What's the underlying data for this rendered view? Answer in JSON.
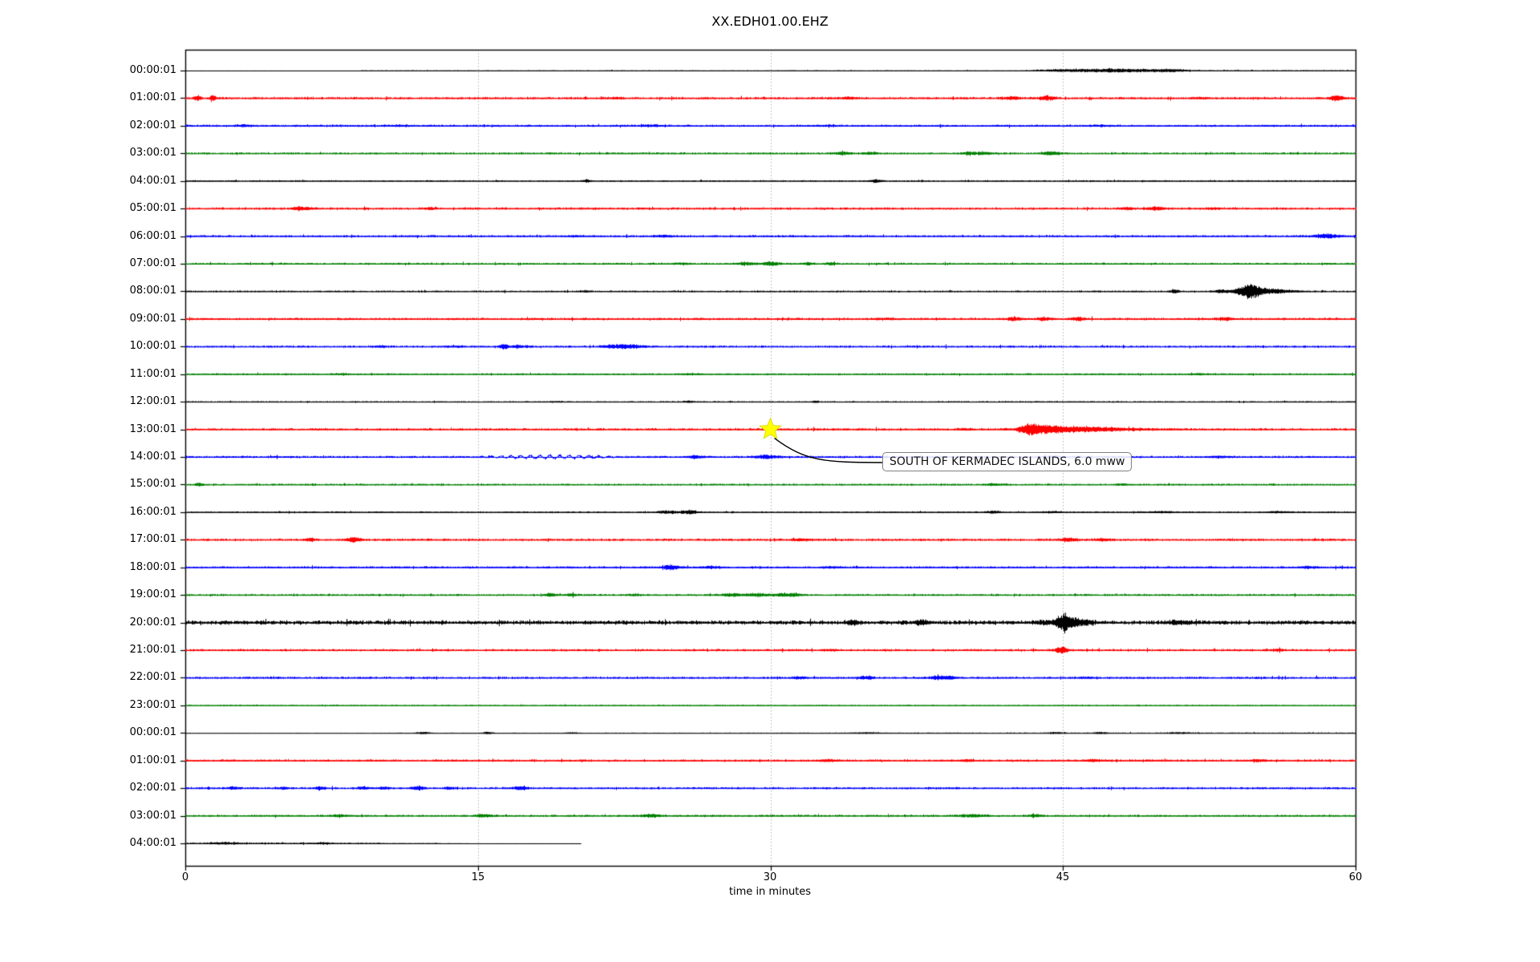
{
  "title": "XX.EDH01.00.EHZ",
  "xlabel": "time in minutes",
  "x_ticks": [
    "0",
    "15",
    "30",
    "45",
    "60"
  ],
  "annotation": {
    "text": "SOUTH OF KERMADEC ISLANDS, 6.0 mww"
  },
  "colors": {
    "trace_black": "#000000",
    "trace_red": "#ff0000",
    "trace_blue": "#0000ff",
    "trace_green": "#008000",
    "gridline": "#b0b0b0",
    "frame": "#000000",
    "event_star_fill": "#ffff00",
    "annotation_border": "#808080"
  },
  "chart_data": {
    "type": "line",
    "subtype": "helicorder-dayplot",
    "title": "XX.EDH01.00.EHZ",
    "xlabel": "time in minutes",
    "x_range_minutes": [
      0,
      60
    ],
    "x_tick_minutes": [
      0,
      15,
      30,
      45,
      60
    ],
    "x_gridlines_minutes": [
      15,
      30,
      45
    ],
    "grid": "vertical-dotted",
    "minutes_per_row": 60,
    "trace_color_cycle": [
      "#000000",
      "#ff0000",
      "#0000ff",
      "#008000"
    ],
    "event_marker": {
      "shape": "star",
      "color": "#ffff00",
      "row_label": "13:00:01",
      "minute": 30,
      "annotation": "SOUTH OF KERMADEC ISLANDS, 6.0 mww"
    },
    "rows": [
      {
        "label": "00:00:01",
        "color": "#000000",
        "amp": 0.9,
        "profile": [
          [
            0,
            0.08
          ],
          [
            9,
            0.45
          ],
          [
            43,
            1.0
          ],
          [
            52,
            0.7
          ]
        ],
        "events": [
          [
            44.8,
            1.2,
            0.5
          ],
          [
            46.5,
            1.5,
            1.0
          ],
          [
            48.5,
            1.8,
            1.2
          ],
          [
            50.5,
            1.5,
            0.5
          ]
        ]
      },
      {
        "label": "01:00:01",
        "color": "#ff0000",
        "amp": 1.3,
        "events": [
          [
            0.6,
            4,
            0.12
          ],
          [
            1.4,
            4,
            0.12
          ],
          [
            22,
            1,
            0.3
          ],
          [
            34,
            1.5,
            0.3
          ],
          [
            42.4,
            2.2,
            0.25
          ],
          [
            44.2,
            2.8,
            0.3
          ],
          [
            52,
            1,
            0.3
          ],
          [
            59,
            3.5,
            0.25
          ]
        ]
      },
      {
        "label": "02:00:01",
        "color": "#0000ff",
        "amp": 1.2,
        "events": [
          [
            3,
            1.3,
            0.3
          ],
          [
            11,
            1,
            0.3
          ],
          [
            24,
            1,
            0.4
          ],
          [
            33,
            1,
            0.3
          ],
          [
            47,
            0.8,
            0.3
          ]
        ]
      },
      {
        "label": "03:00:01",
        "color": "#008000",
        "amp": 1.1,
        "events": [
          [
            33.7,
            1.8,
            0.3
          ],
          [
            35.2,
            1.6,
            0.3
          ],
          [
            40.3,
            2,
            0.3
          ],
          [
            41,
            1.6,
            0.25
          ],
          [
            44.4,
            2.2,
            0.4
          ]
        ]
      },
      {
        "label": "04:00:01",
        "color": "#000000",
        "amp": 0.8,
        "events": [
          [
            20.6,
            2.4,
            0.12
          ],
          [
            35.4,
            2.4,
            0.18
          ]
        ]
      },
      {
        "label": "05:00:01",
        "color": "#ff0000",
        "amp": 1.3,
        "events": [
          [
            6,
            2.4,
            0.35
          ],
          [
            12.5,
            1.4,
            0.2
          ],
          [
            48.2,
            1.6,
            0.25
          ],
          [
            49.7,
            2.6,
            0.3
          ],
          [
            52.8,
            1.2,
            0.3
          ]
        ]
      },
      {
        "label": "06:00:01",
        "color": "#0000ff",
        "amp": 1.2,
        "events": [
          [
            20,
            1,
            0.3
          ],
          [
            24.5,
            1,
            0.3
          ],
          [
            58.5,
            3,
            0.45
          ]
        ]
      },
      {
        "label": "07:00:01",
        "color": "#008000",
        "amp": 1.1,
        "events": [
          [
            25.5,
            1,
            0.3
          ],
          [
            28.7,
            2,
            0.35
          ],
          [
            30,
            2.4,
            0.35
          ],
          [
            31.9,
            1.8,
            0.2
          ],
          [
            33.1,
            1.5,
            0.2
          ]
        ]
      },
      {
        "label": "08:00:01",
        "color": "#000000",
        "amp": 0.9,
        "events": [
          [
            20.5,
            1.4,
            0.15
          ],
          [
            50.7,
            2.4,
            0.18
          ],
          [
            53.1,
            2.8,
            0.22
          ],
          [
            54.5,
            8,
            0.45
          ],
          [
            55.5,
            3.5,
            0.9
          ]
        ]
      },
      {
        "label": "09:00:01",
        "color": "#ff0000",
        "amp": 1.3,
        "events": [
          [
            36,
            1,
            0.3
          ],
          [
            42.5,
            2.4,
            0.3
          ],
          [
            44,
            2,
            0.3
          ],
          [
            45.8,
            2,
            0.3
          ],
          [
            53.3,
            2,
            0.3
          ]
        ]
      },
      {
        "label": "10:00:01",
        "color": "#0000ff",
        "amp": 1.2,
        "events": [
          [
            10,
            1,
            0.3
          ],
          [
            14,
            1,
            0.2
          ],
          [
            16.3,
            4,
            0.15
          ],
          [
            17.1,
            1.5,
            0.3
          ],
          [
            22,
            2,
            0.45
          ],
          [
            22.8,
            2.4,
            0.45
          ]
        ]
      },
      {
        "label": "11:00:01",
        "color": "#008000",
        "amp": 1.0,
        "events": [
          [
            8,
            0.8,
            0.3
          ],
          [
            26,
            0.8,
            0.3
          ],
          [
            52,
            0.8,
            0.3
          ]
        ]
      },
      {
        "label": "12:00:01",
        "color": "#000000",
        "amp": 0.75,
        "events": [
          [
            19,
            0.8,
            0.2
          ],
          [
            25.8,
            1.2,
            0.2
          ],
          [
            32.3,
            1.5,
            0.12
          ]
        ]
      },
      {
        "label": "13:00:01",
        "color": "#ff0000",
        "amp": 1.3,
        "events": [
          [
            40,
            1,
            0.3
          ],
          [
            43.3,
            7,
            0.4
          ],
          [
            44.3,
            4,
            0.7
          ],
          [
            45.8,
            2.5,
            1.0
          ],
          [
            47.5,
            1.8,
            1.4
          ]
        ]
      },
      {
        "label": "14:00:01",
        "color": "#0000ff",
        "amp": 1.2,
        "sine": {
          "from": 14.8,
          "to": 22.5,
          "amp": 2.0,
          "period": 0.5
        },
        "events": [
          [
            26.2,
            2,
            0.3
          ],
          [
            29.8,
            2.6,
            0.45
          ],
          [
            44.5,
            1.4,
            0.3
          ],
          [
            53,
            1.4,
            0.4
          ]
        ]
      },
      {
        "label": "15:00:01",
        "color": "#008000",
        "amp": 1.0,
        "events": [
          [
            0.7,
            2,
            0.15
          ],
          [
            41.5,
            1.2,
            0.4
          ],
          [
            48,
            1,
            0.3
          ]
        ]
      },
      {
        "label": "16:00:01",
        "color": "#000000",
        "amp": 0.85,
        "events": [
          [
            24.7,
            2.2,
            0.35
          ],
          [
            25.8,
            2.6,
            0.35
          ],
          [
            41.4,
            1.6,
            0.25
          ],
          [
            44.5,
            1.2,
            0.3
          ],
          [
            50,
            1.2,
            0.5
          ],
          [
            56,
            1.2,
            0.4
          ]
        ]
      },
      {
        "label": "17:00:01",
        "color": "#ff0000",
        "amp": 1.3,
        "events": [
          [
            6.4,
            2,
            0.18
          ],
          [
            8.6,
            3.4,
            0.25
          ],
          [
            31.6,
            1.5,
            0.3
          ],
          [
            45.3,
            2.4,
            0.35
          ],
          [
            47,
            1.4,
            0.3
          ]
        ]
      },
      {
        "label": "18:00:01",
        "color": "#0000ff",
        "amp": 1.2,
        "events": [
          [
            24.9,
            3.4,
            0.3
          ],
          [
            26.9,
            1.6,
            0.25
          ],
          [
            33,
            1,
            0.3
          ],
          [
            57.5,
            1.4,
            0.3
          ]
        ]
      },
      {
        "label": "19:00:01",
        "color": "#008000",
        "amp": 1.1,
        "events": [
          [
            18.7,
            2.4,
            0.2
          ],
          [
            19.8,
            1.8,
            0.2
          ],
          [
            23,
            1,
            0.3
          ],
          [
            28,
            2,
            0.35
          ],
          [
            29.3,
            2.2,
            0.4
          ],
          [
            30.5,
            2,
            0.3
          ],
          [
            31.2,
            2,
            0.3
          ]
        ]
      },
      {
        "label": "20:00:01",
        "color": "#000000",
        "amp": 2.3,
        "events": [
          [
            34.2,
            2.6,
            0.25
          ],
          [
            37.8,
            2.6,
            0.25
          ],
          [
            44,
            2,
            0.3
          ],
          [
            45.05,
            11,
            0.28
          ],
          [
            45.7,
            4,
            0.6
          ],
          [
            51,
            2,
            0.5
          ]
        ]
      },
      {
        "label": "21:00:01",
        "color": "#ff0000",
        "amp": 1.3,
        "events": [
          [
            33,
            1,
            0.3
          ],
          [
            44.9,
            5,
            0.22
          ],
          [
            56,
            1.2,
            0.3
          ]
        ]
      },
      {
        "label": "22:00:01",
        "color": "#0000ff",
        "amp": 1.2,
        "events": [
          [
            31.5,
            1.5,
            0.3
          ],
          [
            34.9,
            2.4,
            0.28
          ],
          [
            38.5,
            2,
            0.35
          ],
          [
            39.2,
            2,
            0.3
          ],
          [
            46,
            1,
            0.3
          ]
        ]
      },
      {
        "label": "23:00:01",
        "color": "#008000",
        "amp": 0.7,
        "events": []
      },
      {
        "label": "00:00:01",
        "color": "#000000",
        "amp": 0.7,
        "profile": [
          [
            0,
            0.35
          ],
          [
            10,
            0.6
          ],
          [
            30,
            0.8
          ],
          [
            50,
            0.9
          ]
        ],
        "events": [
          [
            12.2,
            1.6,
            0.25
          ],
          [
            15.5,
            1.6,
            0.2
          ],
          [
            19.8,
            1,
            0.2
          ],
          [
            35,
            0.8,
            0.5
          ],
          [
            44.6,
            1,
            0.3
          ],
          [
            46.9,
            1.3,
            0.25
          ],
          [
            51,
            0.8,
            0.4
          ]
        ]
      },
      {
        "label": "01:00:01",
        "color": "#ff0000",
        "amp": 1.2,
        "events": [
          [
            33,
            1.4,
            0.3
          ],
          [
            40,
            1.2,
            0.3
          ],
          [
            46.5,
            1.5,
            0.3
          ],
          [
            55,
            1.2,
            0.3
          ]
        ]
      },
      {
        "label": "02:00:01",
        "color": "#0000ff",
        "amp": 1.2,
        "events": [
          [
            2.4,
            2,
            0.18
          ],
          [
            5,
            1.4,
            0.2
          ],
          [
            6.9,
            2,
            0.18
          ],
          [
            9.1,
            1.8,
            0.18
          ],
          [
            10.2,
            1.8,
            0.18
          ],
          [
            11.9,
            2.8,
            0.22
          ],
          [
            13.5,
            1.8,
            0.18
          ],
          [
            17.2,
            2.8,
            0.25
          ]
        ]
      },
      {
        "label": "03:00:01",
        "color": "#008000",
        "amp": 1.1,
        "events": [
          [
            7.9,
            1.5,
            0.3
          ],
          [
            15.3,
            2.2,
            0.3
          ],
          [
            23.9,
            2.2,
            0.35
          ],
          [
            40.3,
            2,
            0.5
          ],
          [
            43.5,
            1.5,
            0.3
          ]
        ]
      },
      {
        "label": "04:00:01",
        "color": "#000000",
        "amp": 1.1,
        "end_min": 20.3,
        "profile": [
          [
            0,
            1
          ],
          [
            5,
            0.8
          ],
          [
            10,
            0.5
          ],
          [
            13,
            0.25
          ],
          [
            14.5,
            0.08
          ]
        ],
        "events": [
          [
            2,
            1.2,
            0.5
          ],
          [
            7,
            1,
            0.4
          ]
        ]
      }
    ]
  }
}
